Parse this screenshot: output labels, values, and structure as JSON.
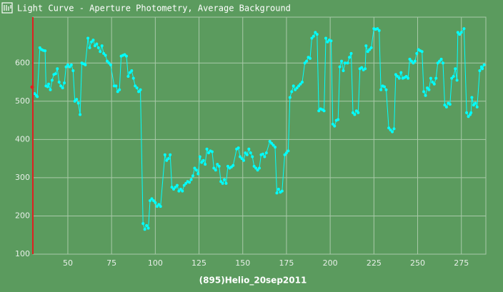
{
  "chart_data": {
    "type": "line",
    "title": "Light Curve - Aperture Photometry, Average Background",
    "x_label": "(895)Helio_20sep2011",
    "color": "#00ffff",
    "grid": true,
    "xlim": [
      30,
      289
    ],
    "ylim": [
      100,
      720
    ],
    "xticks": [
      50,
      75,
      100,
      125,
      150,
      175,
      200,
      225,
      250,
      275
    ],
    "yticks": [
      100,
      200,
      300,
      400,
      500,
      600
    ],
    "x": [
      31,
      32,
      32.5,
      34,
      35,
      36,
      37,
      37.5,
      38.5,
      39,
      40,
      41,
      42,
      43,
      44,
      45,
      46,
      47,
      48,
      49,
      50,
      51,
      52,
      53,
      54,
      55,
      56,
      57,
      58,
      59,
      60,
      61.5,
      62.5,
      63.5,
      64.5,
      65.5,
      66.5,
      67.5,
      68.5,
      69.5,
      70.5,
      71.5,
      72.5,
      73.5,
      74.5,
      76.5,
      77.5,
      78.5,
      79.5,
      80.5,
      81.5,
      82.5,
      83.5,
      84.5,
      85.5,
      86.5,
      87.5,
      88.5,
      89.5,
      90.5,
      91.5,
      93,
      94,
      95,
      96,
      97,
      98,
      99,
      100,
      101,
      102,
      103,
      105.5,
      106.5,
      107.5,
      108.5,
      109.5,
      110.5,
      111.5,
      112.5,
      113.5,
      114.5,
      115.5,
      116.5,
      117.5,
      118.5,
      119.5,
      120.5,
      121.5,
      122.5,
      123.5,
      124.5,
      125.5,
      126.5,
      127.5,
      128.5,
      129.5,
      130.5,
      131.5,
      132.5,
      133.5,
      134.5,
      135.5,
      136.5,
      137.5,
      138.5,
      139.5,
      140.5,
      141.5,
      142.5,
      143.5,
      144.5,
      146.5,
      147.5,
      148.5,
      149.5,
      150.5,
      151.5,
      152.5,
      153.5,
      154.5,
      155.5,
      156.5,
      157.5,
      158.5,
      159.5,
      160.5,
      161.5,
      162.5,
      163.5,
      165.5,
      166.5,
      167.5,
      168.5,
      169.5,
      170.5,
      171.5,
      172.5,
      174,
      175,
      176,
      177,
      178,
      179,
      180,
      181,
      182,
      183,
      184,
      185.5,
      186.5,
      187.5,
      188.5,
      189.5,
      190.5,
      191.5,
      192.5,
      193.5,
      194.5,
      195.5,
      196.5,
      197.5,
      198.5,
      199.5,
      200.5,
      201.5,
      202.5,
      203.5,
      204.5,
      205.5,
      206.5,
      207.5,
      208.5,
      210,
      211,
      212,
      213,
      214,
      215,
      216,
      217,
      218,
      219,
      220,
      220.5,
      221.5,
      222.5,
      223.5,
      225,
      226,
      227,
      228,
      229,
      230,
      231,
      232,
      233.5,
      234.5,
      235.5,
      236.5,
      237.5,
      238.5,
      239.5,
      240.5,
      241.5,
      242.5,
      243.5,
      244.5,
      245.5,
      246.5,
      247.5,
      248.5,
      249.5,
      250.5,
      251.5,
      252.5,
      253.5,
      254.5,
      255.5,
      256.5,
      257.5,
      258.5,
      259.5,
      260.5,
      261.5,
      262.5,
      263.5,
      264.5,
      265.5,
      266.5,
      267.5,
      268.5,
      269.5,
      270.5,
      271.5,
      272.5,
      273,
      274,
      275,
      276.5,
      278,
      279,
      280,
      280.5,
      281,
      282,
      283,
      284,
      285.5,
      286.5,
      287,
      288
    ],
    "y": [
      520,
      515,
      512,
      640,
      635,
      633,
      632,
      540,
      538,
      545,
      530,
      555,
      570,
      572,
      585,
      550,
      540,
      535,
      548,
      590,
      595,
      590,
      595,
      580,
      500,
      505,
      495,
      465,
      600,
      598,
      595,
      665,
      640,
      655,
      660,
      645,
      650,
      640,
      630,
      645,
      625,
      620,
      605,
      600,
      595,
      540,
      540,
      525,
      530,
      618,
      620,
      622,
      618,
      565,
      575,
      580,
      560,
      540,
      535,
      525,
      530,
      180,
      165,
      175,
      168,
      240,
      245,
      240,
      235,
      225,
      230,
      225,
      360,
      345,
      350,
      360,
      275,
      270,
      275,
      280,
      265,
      270,
      265,
      280,
      285,
      290,
      288,
      295,
      305,
      325,
      320,
      310,
      355,
      340,
      345,
      335,
      375,
      365,
      370,
      368,
      325,
      320,
      335,
      330,
      290,
      285,
      295,
      285,
      330,
      325,
      328,
      332,
      375,
      378,
      355,
      350,
      345,
      365,
      360,
      375,
      365,
      355,
      330,
      325,
      320,
      325,
      360,
      362,
      355,
      365,
      395,
      390,
      385,
      380,
      260,
      270,
      262,
      265,
      360,
      365,
      370,
      510,
      525,
      540,
      530,
      535,
      540,
      545,
      550,
      600,
      605,
      615,
      612,
      665,
      670,
      680,
      675,
      475,
      480,
      478,
      475,
      665,
      655,
      660,
      658,
      440,
      435,
      450,
      452,
      590,
      605,
      580,
      600,
      600,
      615,
      625,
      470,
      465,
      475,
      470,
      585,
      588,
      582,
      585,
      645,
      630,
      635,
      640,
      690,
      688,
      690,
      685,
      530,
      540,
      538,
      530,
      430,
      425,
      420,
      428,
      570,
      565,
      560,
      575,
      560,
      562,
      565,
      560,
      610,
      605,
      600,
      605,
      625,
      635,
      632,
      630,
      525,
      515,
      535,
      530,
      560,
      550,
      545,
      560,
      600,
      605,
      610,
      600,
      490,
      485,
      495,
      492,
      560,
      565,
      585,
      555,
      680,
      675,
      680,
      690,
      470,
      460,
      465,
      470,
      510,
      490,
      495,
      485,
      580,
      590,
      585,
      595
    ]
  }
}
